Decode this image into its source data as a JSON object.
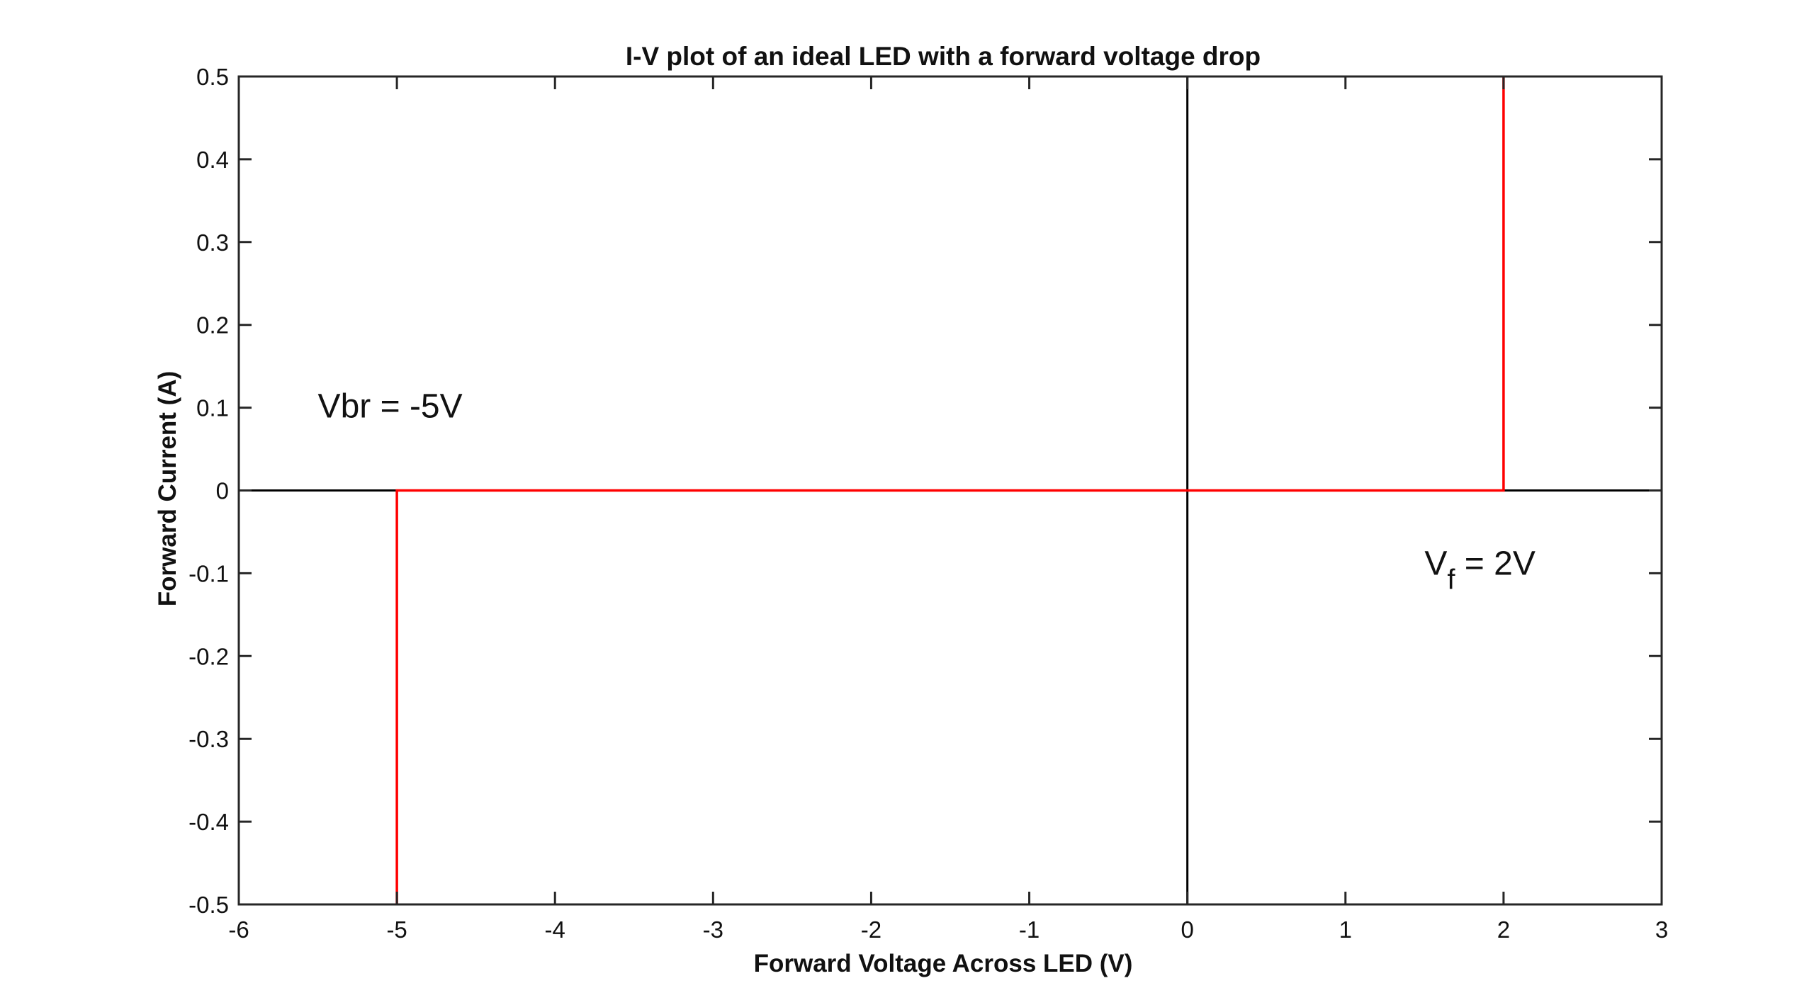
{
  "chart_data": {
    "type": "line",
    "title": "I-V plot of an ideal LED with a forward voltage drop",
    "xlabel": "Forward Voltage Across LED (V)",
    "ylabel": "Forward Current (A)",
    "xlim": [
      -6,
      3
    ],
    "ylim": [
      -0.5,
      0.5
    ],
    "xticks": [
      -6,
      -5,
      -4,
      -3,
      -2,
      -1,
      0,
      1,
      2,
      3
    ],
    "xtick_labels": [
      "-6",
      "-5",
      "-4",
      "-3",
      "-2",
      "-1",
      "0",
      "1",
      "2",
      "3"
    ],
    "yticks": [
      -0.5,
      -0.4,
      -0.3,
      -0.2,
      -0.1,
      0,
      0.1,
      0.2,
      0.3,
      0.4,
      0.5
    ],
    "ytick_labels": [
      "-0.5",
      "-0.4",
      "-0.3",
      "-0.2",
      "-0.1",
      "0",
      "0.1",
      "0.2",
      "0.3",
      "0.4",
      "0.5"
    ],
    "grid": false,
    "reference_lines": [
      {
        "orientation": "horizontal",
        "value": 0,
        "color": "#000000"
      },
      {
        "orientation": "vertical",
        "value": 0,
        "color": "#000000"
      }
    ],
    "series": [
      {
        "color": "#ff0000",
        "x": [
          -5,
          -5,
          2,
          2
        ],
        "y": [
          -0.5,
          0,
          0,
          0.5
        ]
      }
    ],
    "annotations": [
      {
        "text": "Vbr = -5V",
        "x": -5.5,
        "y": 0.1
      },
      {
        "text": "V",
        "subscript": "f",
        "suffix": " = 2V",
        "x": 1.5,
        "y": -0.09
      }
    ]
  }
}
